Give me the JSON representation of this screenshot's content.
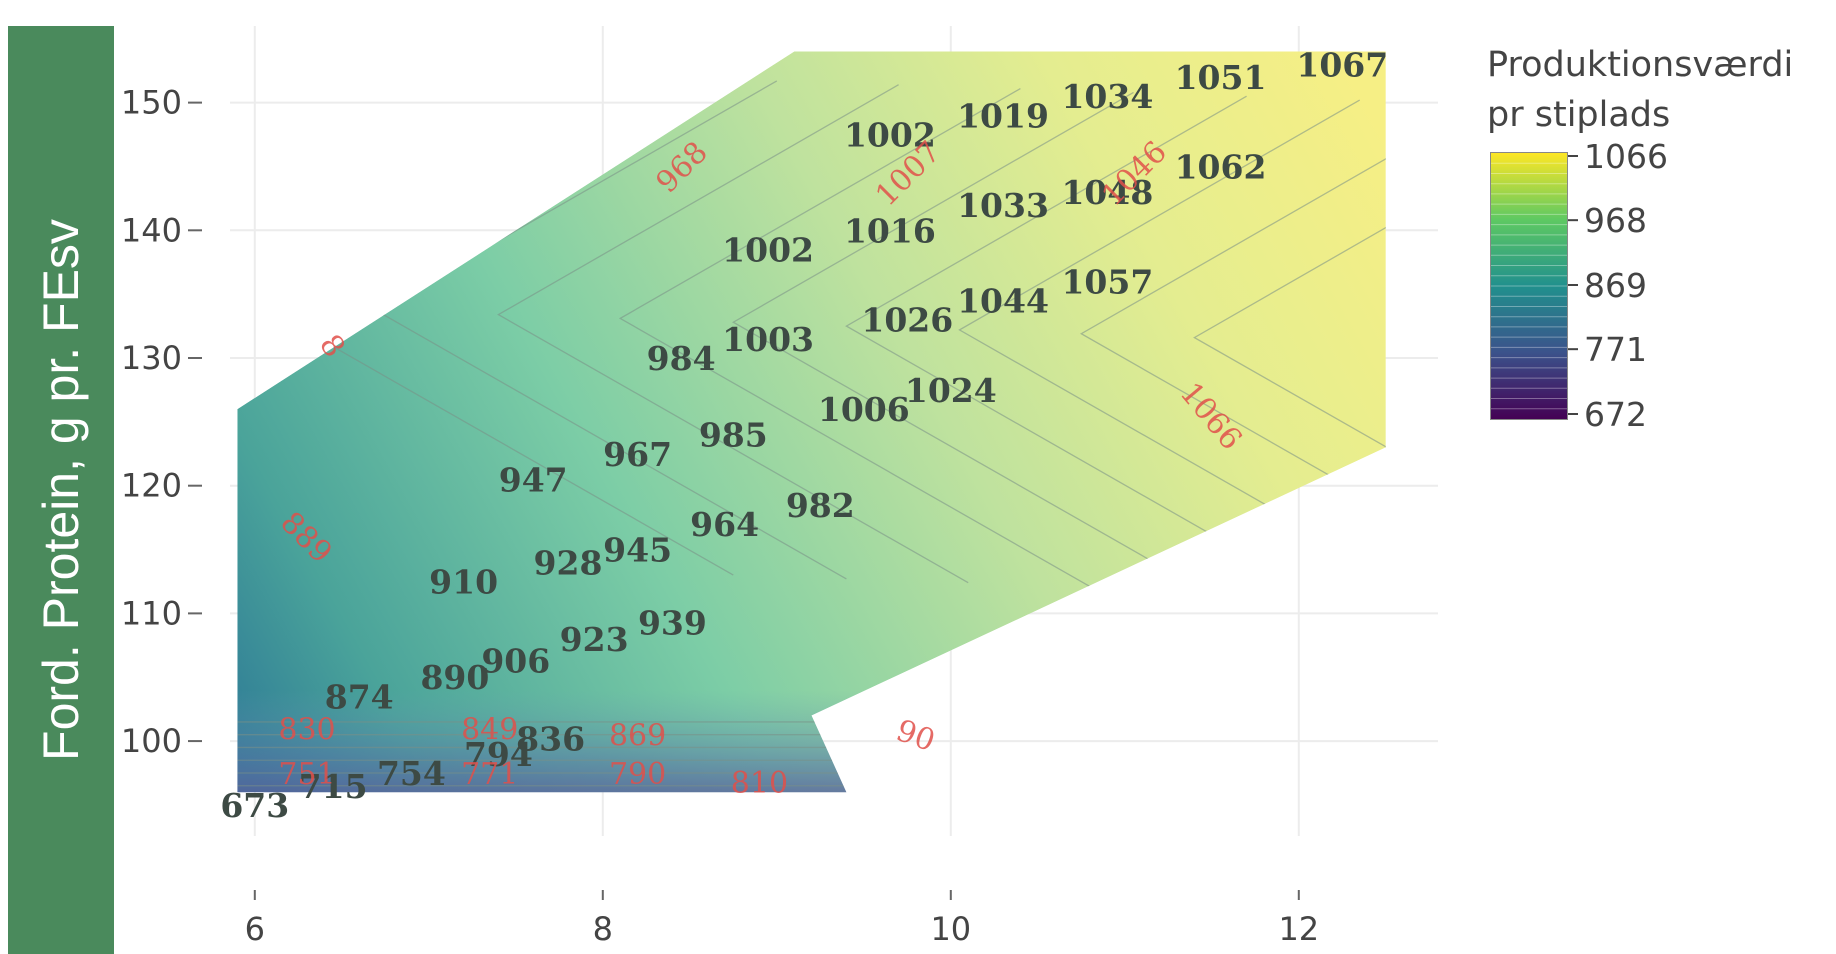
{
  "chart_data": {
    "type": "contour",
    "title": "",
    "ylabel": "Ford. Protein, g pr. FEsv",
    "xlabel": "",
    "xlim": [
      5.8,
      12.8
    ],
    "ylim": [
      91,
      156
    ],
    "x_ticks": [
      6,
      8,
      10,
      12
    ],
    "y_ticks": [
      100,
      110,
      120,
      130,
      140,
      150
    ],
    "grid": true,
    "region": [
      [
        5.9,
        96
      ],
      [
        5.9,
        126
      ],
      [
        9.1,
        154
      ],
      [
        12.5,
        154
      ],
      [
        12.5,
        123
      ],
      [
        9.2,
        102
      ],
      [
        9.4,
        96
      ]
    ],
    "contour_levels": [
      830,
      849,
      869,
      889,
      908,
      928,
      948,
      968,
      987,
      1007,
      1026,
      1046,
      1066
    ],
    "colorscale": [
      "#440154",
      "#3b528b",
      "#21908d",
      "#5ec962",
      "#fde725"
    ],
    "colorbar": {
      "title": [
        "Produktionsværdi",
        "pr stiplads"
      ],
      "ticks": [
        "1066",
        "968",
        "869",
        "771",
        "672"
      ],
      "range": [
        672,
        1066
      ]
    },
    "points": [
      {
        "x": 6.0,
        "y": 95,
        "value": "673"
      },
      {
        "x": 6.45,
        "y": 96.5,
        "value": "715"
      },
      {
        "x": 6.9,
        "y": 97.5,
        "value": "754"
      },
      {
        "x": 7.4,
        "y": 99,
        "value": "794"
      },
      {
        "x": 7.7,
        "y": 100.2,
        "value": "836"
      },
      {
        "x": 6.6,
        "y": 103.5,
        "value": "874"
      },
      {
        "x": 7.15,
        "y": 105,
        "value": "890"
      },
      {
        "x": 7.5,
        "y": 106.3,
        "value": "906"
      },
      {
        "x": 7.95,
        "y": 108,
        "value": "923"
      },
      {
        "x": 8.4,
        "y": 109.3,
        "value": "939"
      },
      {
        "x": 7.2,
        "y": 112.5,
        "value": "910"
      },
      {
        "x": 7.8,
        "y": 114,
        "value": "928"
      },
      {
        "x": 8.2,
        "y": 115,
        "value": "945"
      },
      {
        "x": 8.7,
        "y": 117,
        "value": "964"
      },
      {
        "x": 9.25,
        "y": 118.5,
        "value": "982"
      },
      {
        "x": 7.6,
        "y": 120.5,
        "value": "947"
      },
      {
        "x": 8.2,
        "y": 122.5,
        "value": "967"
      },
      {
        "x": 8.75,
        "y": 124,
        "value": "985"
      },
      {
        "x": 9.5,
        "y": 126,
        "value": "1006"
      },
      {
        "x": 10.0,
        "y": 127.5,
        "value": "1024"
      },
      {
        "x": 8.45,
        "y": 130,
        "value": "984"
      },
      {
        "x": 8.95,
        "y": 131.5,
        "value": "1003"
      },
      {
        "x": 9.75,
        "y": 133,
        "value": "1026"
      },
      {
        "x": 10.3,
        "y": 134.5,
        "value": "1044"
      },
      {
        "x": 10.9,
        "y": 136,
        "value": "1057"
      },
      {
        "x": 8.95,
        "y": 138.5,
        "value": "1002"
      },
      {
        "x": 9.65,
        "y": 140,
        "value": "1016"
      },
      {
        "x": 10.3,
        "y": 142,
        "value": "1033"
      },
      {
        "x": 10.9,
        "y": 143,
        "value": "1048"
      },
      {
        "x": 11.55,
        "y": 145,
        "value": "1062"
      },
      {
        "x": 9.65,
        "y": 147.5,
        "value": "1002"
      },
      {
        "x": 10.3,
        "y": 149,
        "value": "1019"
      },
      {
        "x": 10.9,
        "y": 150.5,
        "value": "1034"
      },
      {
        "x": 11.55,
        "y": 152,
        "value": "1051"
      },
      {
        "x": 12.25,
        "y": 153,
        "value": "1067"
      }
    ],
    "contour_labels": [
      {
        "x": 6.3,
        "y": 101,
        "value": "830",
        "angle": 0
      },
      {
        "x": 6.3,
        "y": 97.5,
        "value": "751",
        "angle": 0
      },
      {
        "x": 7.35,
        "y": 101,
        "value": "849",
        "angle": 0
      },
      {
        "x": 7.35,
        "y": 97.5,
        "value": "771",
        "angle": 0
      },
      {
        "x": 8.2,
        "y": 100.5,
        "value": "869",
        "angle": 0
      },
      {
        "x": 8.2,
        "y": 97.5,
        "value": "790",
        "angle": 0
      },
      {
        "x": 8.9,
        "y": 96.8,
        "value": "810",
        "angle": 0
      },
      {
        "x": 9.8,
        "y": 100.5,
        "value": "90",
        "angle": 20
      },
      {
        "x": 6.3,
        "y": 116,
        "value": "889",
        "angle": 45
      },
      {
        "x": 6.45,
        "y": 131,
        "value": "8",
        "angle": 55
      },
      {
        "x": 8.45,
        "y": 145,
        "value": "968",
        "angle": -45
      },
      {
        "x": 9.75,
        "y": 144.5,
        "value": "1007",
        "angle": -45
      },
      {
        "x": 11.05,
        "y": 144.5,
        "value": "1046",
        "angle": -45
      },
      {
        "x": 11.5,
        "y": 125.5,
        "value": "1066",
        "angle": 50
      }
    ]
  }
}
